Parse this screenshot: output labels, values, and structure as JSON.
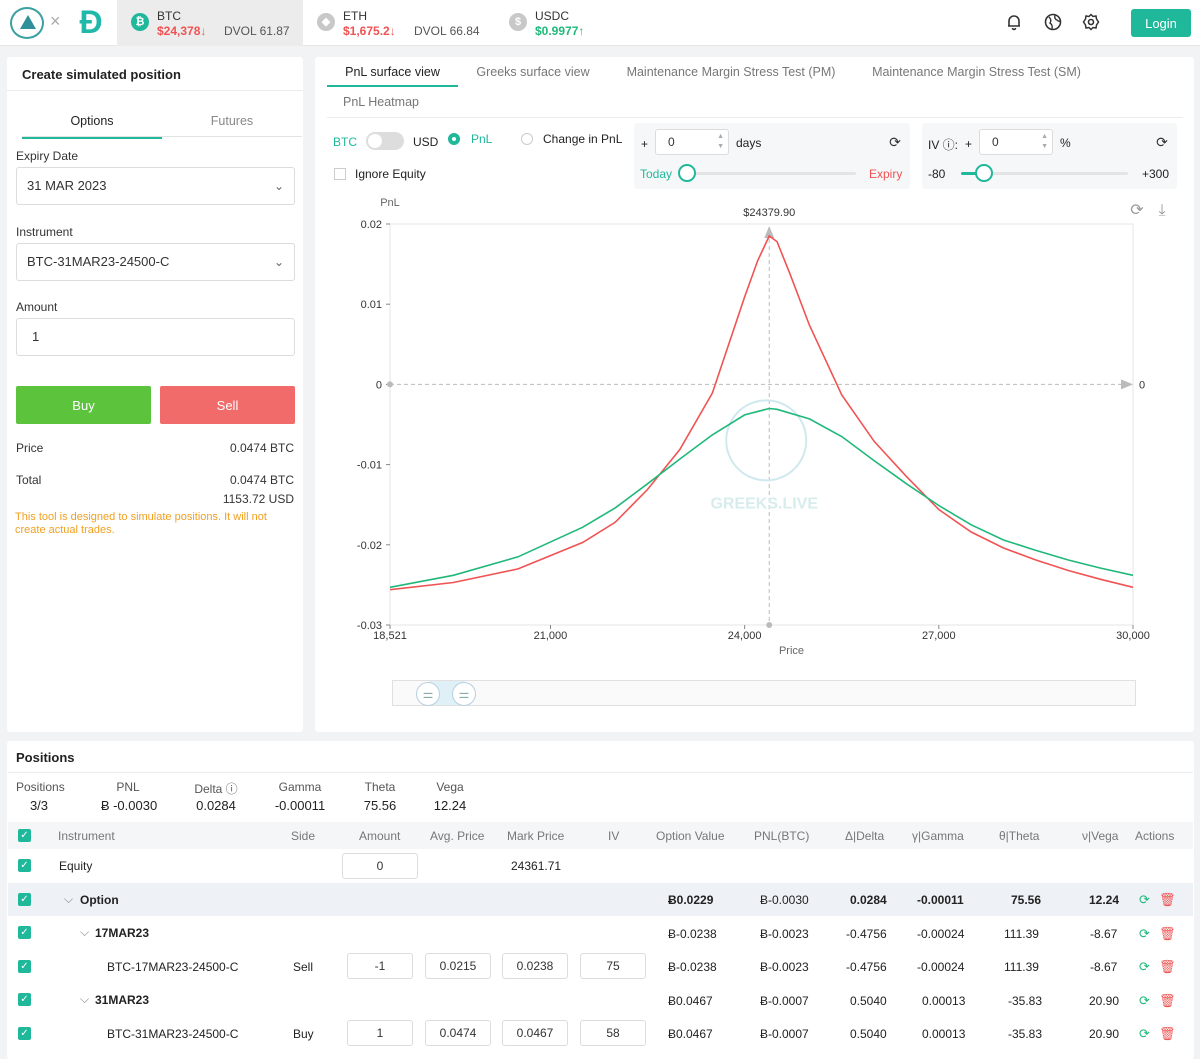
{
  "header": {
    "coins": [
      {
        "name": "BTC",
        "price": "$24,378↓",
        "dvol": "DVOL 61.87",
        "icon": "bitcoin-icon"
      },
      {
        "name": "ETH",
        "price": "$1,675.2↓",
        "dvol": "DVOL 66.84",
        "icon": "ethereum-icon"
      },
      {
        "name": "USDC",
        "price": "$0.9977↑",
        "icon": "usdc-icon"
      }
    ],
    "login_label": "Login",
    "colors": {
      "accent": "#20b89a",
      "up": "#20b87a",
      "down": "#f05353"
    }
  },
  "left": {
    "title": "Create simulated position",
    "tabs": [
      "Options",
      "Futures"
    ],
    "expiry_label": "Expiry Date",
    "expiry_value": "31 MAR 2023",
    "instrument_label": "Instrument",
    "instrument_value": "BTC-31MAR23-24500-C",
    "amount_label": "Amount",
    "amount_value": "1",
    "buy_label": "Buy",
    "sell_label": "Sell",
    "price_label": "Price",
    "price_value": "0.0474 BTC",
    "total_label": "Total",
    "total_btc": "0.0474 BTC",
    "total_usd": "1153.72 USD",
    "warning": "This tool is designed to simulate positions. It will not create actual trades."
  },
  "right": {
    "tabs": [
      "PnL surface view",
      "Greeks surface view",
      "Maintenance Margin Stress Test (PM)",
      "Maintenance Margin Stress Test (SM)",
      "PnL Heatmap"
    ],
    "btc_label": "BTC",
    "usd_label": "USD",
    "pnl_label": "PnL",
    "change_label": "Change in PnL",
    "ignore_equity": "Ignore Equity",
    "plus": "+",
    "days_value": "0",
    "days_label": "days",
    "today_label": "Today",
    "expiry_label": "Expiry",
    "iv_label": "IV ⓘ:",
    "iv_value": "0",
    "pct": "%",
    "iv_min": "-80",
    "iv_max": "+300",
    "iv_level": 0.14,
    "watermark": "GREEKS.LIVE"
  },
  "chart_data": {
    "type": "line",
    "ylabel": "PnL",
    "xlabel": "Price",
    "xlim": [
      18521,
      30000
    ],
    "ylim": [
      -0.03,
      0.02
    ],
    "xticks": [
      "18,521",
      "21,000",
      "24,000",
      "27,000",
      "30,000"
    ],
    "yticks": [
      "0.02",
      "0.01",
      "0",
      "-0.01",
      "-0.02",
      "-0.03"
    ],
    "marker_label": "$24379.90",
    "marker_x": 24379.9,
    "zero_right_label": "0",
    "series": [
      {
        "name": "Expiry",
        "color": "#f05353",
        "x": [
          18521,
          19500,
          20500,
          21500,
          22000,
          22500,
          23000,
          23500,
          24000,
          24200,
          24379.9,
          24500,
          24700,
          25000,
          25500,
          26000,
          26500,
          27000,
          27500,
          28000,
          28500,
          29000,
          29500,
          30000
        ],
        "values": [
          -0.0256,
          -0.0247,
          -0.023,
          -0.0197,
          -0.0172,
          -0.0131,
          -0.0081,
          -0.0011,
          0.0109,
          0.0154,
          0.0185,
          0.0178,
          0.0138,
          0.0074,
          -0.0013,
          -0.0071,
          -0.0115,
          -0.0156,
          -0.0184,
          -0.0204,
          -0.0219,
          -0.0232,
          -0.0243,
          -0.0253
        ]
      },
      {
        "name": "Today",
        "color": "#20b87a",
        "x": [
          18521,
          19500,
          20500,
          21500,
          22000,
          22500,
          23000,
          23500,
          24000,
          24379.9,
          24500,
          25000,
          25500,
          26000,
          26500,
          27000,
          27500,
          28000,
          28500,
          29000,
          29500,
          30000
        ],
        "values": [
          -0.0253,
          -0.0238,
          -0.0215,
          -0.0178,
          -0.0154,
          -0.0124,
          -0.0093,
          -0.0063,
          -0.0038,
          -0.003,
          -0.0031,
          -0.0043,
          -0.0065,
          -0.0095,
          -0.0124,
          -0.0151,
          -0.0175,
          -0.0194,
          -0.0207,
          -0.0219,
          -0.0229,
          -0.0238
        ]
      }
    ]
  },
  "positions": {
    "title": "Positions",
    "summary": [
      {
        "label": "Positions",
        "value": "3/3"
      },
      {
        "label": "PNL",
        "value": "Ƀ -0.0030"
      },
      {
        "label": "Delta ⓘ",
        "value": "0.0284"
      },
      {
        "label": "Gamma",
        "value": "-0.00011"
      },
      {
        "label": "Theta",
        "value": "75.56"
      },
      {
        "label": "Vega",
        "value": "12.24"
      }
    ],
    "columns": [
      "Instrument",
      "Side",
      "Amount",
      "Avg. Price",
      "Mark Price",
      "IV",
      "Option Value",
      "PNL(BTC)",
      "Δ|Delta",
      "γ|Gamma",
      "θ|Theta",
      "ν|Vega",
      "Actions"
    ],
    "equity": {
      "name": "Equity",
      "amount": "0",
      "mark": "24361.71"
    },
    "option_group": {
      "name": "Option",
      "value": "Ƀ0.0229",
      "pnl": "Ƀ-0.0030",
      "delta": "0.0284",
      "gamma": "-0.00011",
      "theta": "75.56",
      "vega": "12.24"
    },
    "rows": [
      {
        "name": "17MAR23",
        "value": "Ƀ-0.0238",
        "pnl": "Ƀ-0.0023",
        "delta": "-0.4756",
        "gamma": "-0.00024",
        "theta": "111.39",
        "vega": "-8.67"
      },
      {
        "name": "BTC-17MAR23-24500-C",
        "side": "Sell",
        "amount": "-1",
        "avg": "0.0215",
        "mark": "0.0238",
        "iv": "75",
        "value": "Ƀ-0.0238",
        "pnl": "Ƀ-0.0023",
        "delta": "-0.4756",
        "gamma": "-0.00024",
        "theta": "111.39",
        "vega": "-8.67"
      },
      {
        "name": "31MAR23",
        "value": "Ƀ0.0467",
        "pnl": "Ƀ-0.0007",
        "delta": "0.5040",
        "gamma": "0.00013",
        "theta": "-35.83",
        "vega": "20.90"
      },
      {
        "name": "BTC-31MAR23-24500-C",
        "side": "Buy",
        "amount": "1",
        "avg": "0.0474",
        "mark": "0.0467",
        "iv": "58",
        "value": "Ƀ0.0467",
        "pnl": "Ƀ-0.0007",
        "delta": "0.5040",
        "gamma": "0.00013",
        "theta": "-35.83",
        "vega": "20.90"
      }
    ]
  }
}
